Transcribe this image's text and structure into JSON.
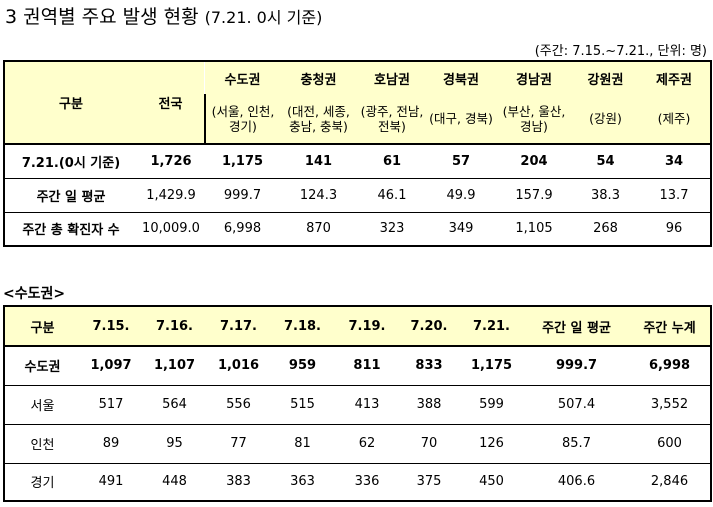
{
  "header": {
    "title": "3 권역별 주요 발생 현황",
    "date_note": "(7.21. 0시 기준)",
    "unit_note": "(주간: 7.15.~7.21., 단위: 명)"
  },
  "regional_table": {
    "corner_label": "구분",
    "national_label": "전국",
    "regions": [
      {
        "name": "수도권",
        "detail": "(서울, 인천, 경기)"
      },
      {
        "name": "충청권",
        "detail": "(대전, 세종, 충남, 충북)"
      },
      {
        "name": "호남권",
        "detail": "(광주, 전남, 전북)"
      },
      {
        "name": "경북권",
        "detail": "(대구, 경북)"
      },
      {
        "name": "경남권",
        "detail": "(부산, 울산, 경남)"
      },
      {
        "name": "강원권",
        "detail": "(강원)"
      },
      {
        "name": "제주권",
        "detail": "(제주)"
      }
    ],
    "rows": [
      {
        "label": "7.21.(0시 기준)",
        "values": [
          "1,726",
          "1,175",
          "141",
          "61",
          "57",
          "204",
          "54",
          "34"
        ]
      },
      {
        "label": "주간 일 평균",
        "values": [
          "1,429.9",
          "999.7",
          "124.3",
          "46.1",
          "49.9",
          "157.9",
          "38.3",
          "13.7"
        ]
      },
      {
        "label": "주간 총 확진자 수",
        "values": [
          "10,009.0",
          "6,998",
          "870",
          "323",
          "349",
          "1,105",
          "268",
          "96"
        ]
      }
    ]
  },
  "capital_section": {
    "subtitle": "<수도권>",
    "headers": [
      "구분",
      "7.15.",
      "7.16.",
      "7.17.",
      "7.18.",
      "7.19.",
      "7.20.",
      "7.21.",
      "주간 일 평균",
      "주간 누계"
    ],
    "rows": [
      {
        "label": "수도권",
        "values": [
          "1,097",
          "1,107",
          "1,016",
          "959",
          "811",
          "833",
          "1,175",
          "999.7",
          "6,998"
        ]
      },
      {
        "label": "서울",
        "values": [
          "517",
          "564",
          "556",
          "515",
          "413",
          "388",
          "599",
          "507.4",
          "3,552"
        ]
      },
      {
        "label": "인천",
        "values": [
          "89",
          "95",
          "77",
          "81",
          "62",
          "70",
          "126",
          "85.7",
          "600"
        ]
      },
      {
        "label": "경기",
        "values": [
          "491",
          "448",
          "383",
          "363",
          "336",
          "375",
          "450",
          "406.6",
          "2,846"
        ]
      }
    ]
  }
}
